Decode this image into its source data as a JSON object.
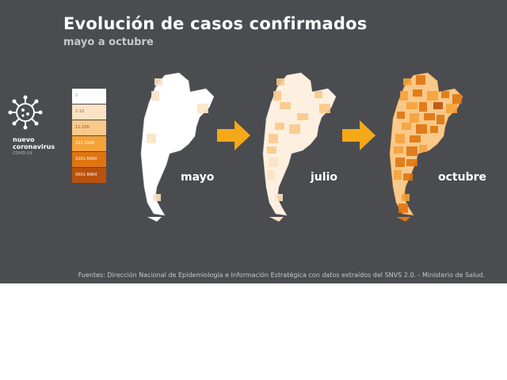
{
  "header": {
    "title": "Evolución de casos confirmados",
    "subtitle": "mayo a octubre"
  },
  "brand": {
    "line1": "nuevo",
    "line2": "coronavirus",
    "line3": "COVID-19",
    "icon": "virus-icon"
  },
  "legend": {
    "items": [
      {
        "label": "0",
        "color": "#ffffff",
        "text_color": "#9a9a9a"
      },
      {
        "label": "1-10",
        "color": "#fbe3c4",
        "text_color": "#8a6a4a"
      },
      {
        "label": "11-100",
        "color": "#f8c98a",
        "text_color": "#8a5a2a"
      },
      {
        "label": "101-1000",
        "color": "#f5a23a",
        "text_color": "#ffffff"
      },
      {
        "label": "1001-5000",
        "color": "#e0740f",
        "text_color": "#ffffff"
      },
      {
        "label": "5001-9064",
        "color": "#b9520a",
        "text_color": "#ffffff"
      }
    ]
  },
  "maps": [
    {
      "label": "mayo",
      "intensity": 0.05
    },
    {
      "label": "julio",
      "intensity": 0.35
    },
    {
      "label": "octubre",
      "intensity": 0.85
    }
  ],
  "arrow_color": "#f5a818",
  "footer": {
    "source": "Fuentes: Dirección Nacional de Epidemiología e Información Estratégica con datos extraídos del SNVS 2.0. - Ministerio de Salud."
  }
}
